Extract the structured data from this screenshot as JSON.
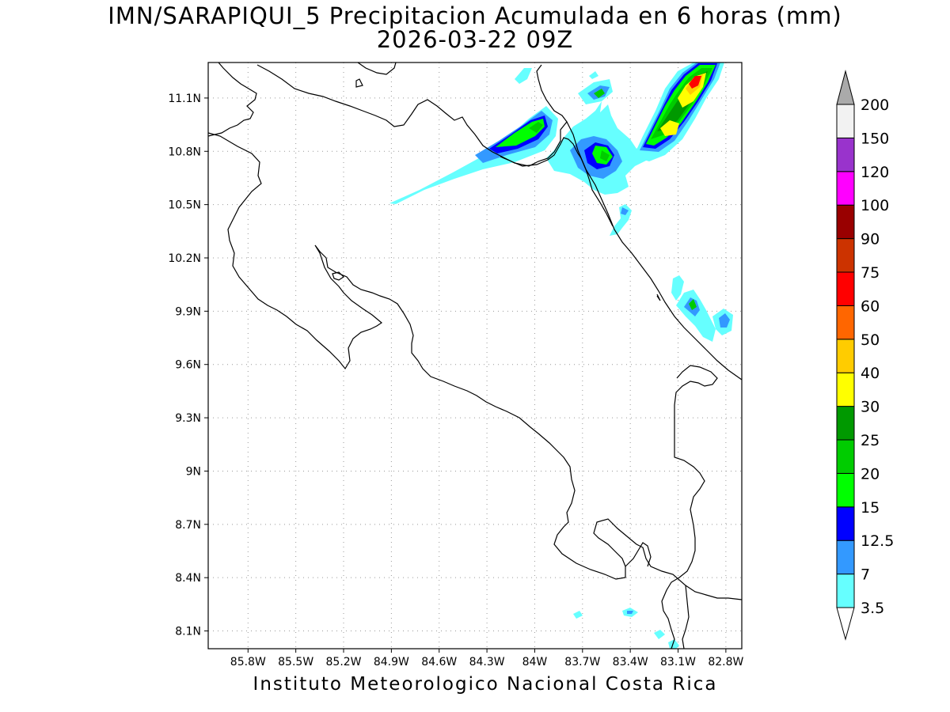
{
  "title": {
    "line1": "IMN/SARAPIQUI_5 Precipitacion Acumulada en 6 horas (mm)",
    "line2": "2026-03-22 09Z"
  },
  "footer": "Instituto Meteorologico Nacional Costa Rica",
  "map": {
    "lon_range": [
      -86.05,
      -82.7
    ],
    "lat_range": [
      8.0,
      11.3
    ],
    "lat_ticks": [
      "8.1N",
      "8.4N",
      "8.7N",
      "9N",
      "9.3N",
      "9.6N",
      "9.9N",
      "10.2N",
      "10.5N",
      "10.8N",
      "11.1N"
    ],
    "lon_ticks": [
      "85.8W",
      "85.5W",
      "85.2W",
      "84.9W",
      "84.6W",
      "84.3W",
      "84W",
      "83.7W",
      "83.4W",
      "83.1W",
      "82.8W"
    ],
    "grid": true
  },
  "colorbar": {
    "levels": [
      {
        "label": "3.5",
        "color": "#66ffff"
      },
      {
        "label": "7",
        "color": "#3399ff"
      },
      {
        "label": "12.5",
        "color": "#0000ff"
      },
      {
        "label": "15",
        "color": "#00ff00"
      },
      {
        "label": "20",
        "color": "#00cc00"
      },
      {
        "label": "25",
        "color": "#009900"
      },
      {
        "label": "30",
        "color": "#ffff00"
      },
      {
        "label": "40",
        "color": "#ffcc00"
      },
      {
        "label": "50",
        "color": "#ff6600"
      },
      {
        "label": "60",
        "color": "#ff0000"
      },
      {
        "label": "75",
        "color": "#cc3300"
      },
      {
        "label": "90",
        "color": "#990000"
      },
      {
        "label": "100",
        "color": "#ff00ff"
      },
      {
        "label": "120",
        "color": "#9933cc"
      },
      {
        "label": "150",
        "color": "#f2f2f2"
      },
      {
        "label": "200",
        "color": "#aaaaaa"
      }
    ]
  },
  "colors": {
    "coast": "#000000",
    "grid": "#999999"
  }
}
